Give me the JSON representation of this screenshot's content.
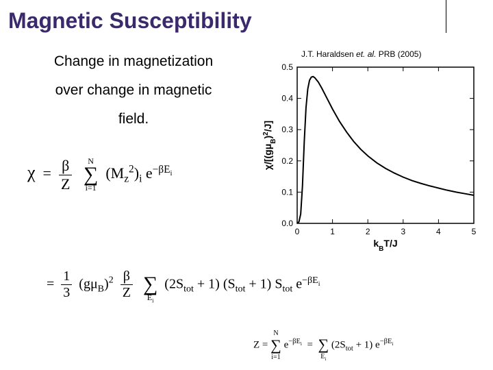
{
  "title": "Magnetic Susceptibility",
  "description": {
    "line1": "Change in magnetization",
    "line2": "over change in magnetic",
    "line3": "field."
  },
  "citation": {
    "author": "J.T. Haraldsen",
    "etal": "et. al.",
    "ref": "PRB (2005)"
  },
  "chart": {
    "type": "line",
    "xlim": [
      0,
      5
    ],
    "ylim": [
      0,
      0.5
    ],
    "xticks": [
      0,
      1,
      2,
      3,
      4,
      5
    ],
    "yticks": [
      0.0,
      0.1,
      0.2,
      0.3,
      0.4,
      0.5
    ],
    "xtick_labels": [
      "0",
      "1",
      "2",
      "3",
      "4",
      "5"
    ],
    "ytick_labels": [
      "0.0",
      "0.1",
      "0.2",
      "0.3",
      "0.4",
      "0.5"
    ],
    "xlabel": "k_B T/J",
    "ylabel": "χ/[(gμ_B)²/J]",
    "curve_color": "#000000",
    "background_color": "#ffffff",
    "axis_color": "#000000",
    "line_width": 2,
    "label_fontsize": 14,
    "tick_fontsize": 12,
    "data": [
      [
        0.0,
        0.0
      ],
      [
        0.05,
        0.005
      ],
      [
        0.1,
        0.03
      ],
      [
        0.15,
        0.12
      ],
      [
        0.2,
        0.26
      ],
      [
        0.25,
        0.37
      ],
      [
        0.3,
        0.43
      ],
      [
        0.35,
        0.458
      ],
      [
        0.4,
        0.468
      ],
      [
        0.45,
        0.47
      ],
      [
        0.5,
        0.466
      ],
      [
        0.6,
        0.452
      ],
      [
        0.7,
        0.432
      ],
      [
        0.8,
        0.41
      ],
      [
        0.9,
        0.388
      ],
      [
        1.0,
        0.366
      ],
      [
        1.2,
        0.326
      ],
      [
        1.4,
        0.292
      ],
      [
        1.6,
        0.262
      ],
      [
        1.8,
        0.237
      ],
      [
        2.0,
        0.216
      ],
      [
        2.25,
        0.194
      ],
      [
        2.5,
        0.176
      ],
      [
        2.75,
        0.161
      ],
      [
        3.0,
        0.148
      ],
      [
        3.25,
        0.137
      ],
      [
        3.5,
        0.128
      ],
      [
        3.75,
        0.12
      ],
      [
        4.0,
        0.113
      ],
      [
        4.25,
        0.106
      ],
      [
        4.5,
        0.1
      ],
      [
        4.75,
        0.095
      ],
      [
        5.0,
        0.09
      ]
    ]
  },
  "formulas": {
    "chi": "χ",
    "eq": "=",
    "beta": "β",
    "Z": "Z",
    "N": "N",
    "i1": "i=1",
    "Mz2i": "(M_z²)_i",
    "exp1": "e^{−βE_i}",
    "onethird_num": "1",
    "onethird_den": "3",
    "gmuB2": "(gμ_B)²",
    "Ei": "E_i",
    "term": "(2S_tot + 1)(S_tot + 1) S_tot",
    "expEi": "e^{−βE_i}",
    "Zsum_lhs": "Z",
    "Zsum_rhs": "(2S_tot + 1) e^{−βE_i}"
  }
}
